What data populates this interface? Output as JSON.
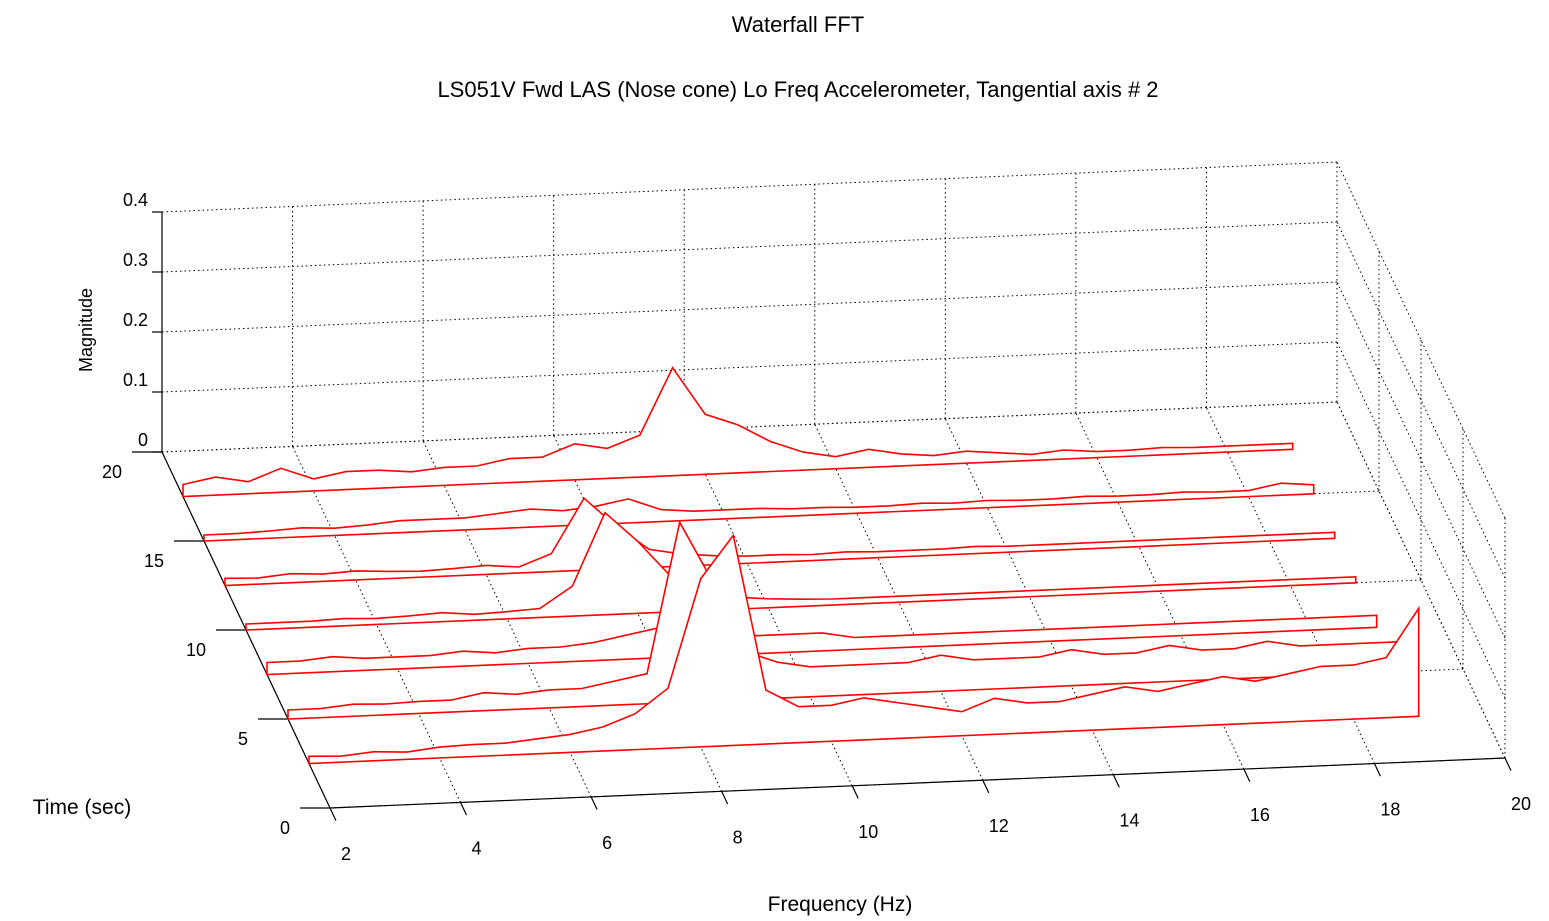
{
  "chart_data": {
    "type": "waterfall",
    "title": "Waterfall FFT",
    "subtitle": "LS051V Fwd LAS (Nose cone) Lo Freq Accelerometer, Tangential axis # 2",
    "xlabel": "Frequency (Hz)",
    "ylabel": "Time (sec)",
    "zlabel": "Magnitude",
    "xlim": [
      2,
      20
    ],
    "ylim": [
      0,
      20
    ],
    "zlim": [
      0,
      0.4
    ],
    "xticks": [
      "2",
      "4",
      "6",
      "8",
      "10",
      "12",
      "14",
      "16",
      "18",
      "20"
    ],
    "yticks": [
      "0",
      "5",
      "10",
      "15",
      "20"
    ],
    "zticks": [
      "0",
      "0.1",
      "0.2",
      "0.3",
      "0.4"
    ],
    "grid": true,
    "line_color": "#ff0000",
    "frequency": [
      2,
      2.5,
      3,
      3.5,
      4,
      4.5,
      5,
      5.5,
      6,
      6.5,
      7,
      7.5,
      8,
      8.5,
      9,
      9.5,
      10,
      10.5,
      11,
      11.5,
      12,
      12.5,
      13,
      13.5,
      14,
      14.5,
      15,
      15.5,
      16,
      16.5,
      17,
      17.5,
      18,
      18.5,
      19
    ],
    "series": [
      {
        "time": 2.5,
        "values": [
          0.012,
          0.01,
          0.015,
          0.012,
          0.018,
          0.02,
          0.02,
          0.025,
          0.03,
          0.04,
          0.06,
          0.1,
          0.28,
          0.35,
          0.09,
          0.06,
          0.06,
          0.07,
          0.06,
          0.05,
          0.04,
          0.06,
          0.05,
          0.05,
          0.06,
          0.07,
          0.06,
          0.07,
          0.08,
          0.07,
          0.08,
          0.09,
          0.09,
          0.1,
          0.18
        ]
      },
      {
        "time": 5.0,
        "values": [
          0.015,
          0.015,
          0.02,
          0.018,
          0.02,
          0.02,
          0.03,
          0.025,
          0.03,
          0.03,
          0.04,
          0.05,
          0.3,
          0.2,
          0.08,
          0.06,
          0.05,
          0.05,
          0.05,
          0.05,
          0.06,
          0.05,
          0.05,
          0.05,
          0.06,
          0.05,
          0.05,
          0.06,
          0.05,
          0.05,
          0.06,
          0.05,
          0.05,
          0.05,
          0.05
        ]
      },
      {
        "time": 7.5,
        "values": [
          0.02,
          0.02,
          0.025,
          0.02,
          0.02,
          0.02,
          0.025,
          0.02,
          0.025,
          0.025,
          0.03,
          0.04,
          0.05,
          0.05,
          0.04,
          0.03,
          0.03,
          0.03,
          0.02,
          0.02,
          0.02,
          0.02,
          0.02,
          0.02,
          0.02,
          0.02,
          0.02,
          0.02,
          0.02,
          0.02,
          0.02,
          0.02,
          0.02,
          0.02,
          0.02
        ]
      },
      {
        "time": 10.0,
        "values": [
          0.01,
          0.01,
          0.01,
          0.012,
          0.01,
          0.012,
          0.015,
          0.01,
          0.012,
          0.015,
          0.05,
          0.17,
          0.12,
          0.06,
          0.03,
          0.02,
          0.015,
          0.012,
          0.01,
          0.01,
          0.01,
          0.01,
          0.01,
          0.01,
          0.01,
          0.01,
          0.01,
          0.01,
          0.01,
          0.01,
          0.01,
          0.01,
          0.01,
          0.01,
          0.01
        ]
      },
      {
        "time": 12.5,
        "values": [
          0.012,
          0.01,
          0.015,
          0.012,
          0.015,
          0.012,
          0.01,
          0.012,
          0.015,
          0.01,
          0.03,
          0.12,
          0.07,
          0.03,
          0.02,
          0.015,
          0.012,
          0.012,
          0.01,
          0.012,
          0.01,
          0.01,
          0.01,
          0.012,
          0.01,
          0.01,
          0.01,
          0.01,
          0.01,
          0.01,
          0.01,
          0.01,
          0.01,
          0.01,
          0.01
        ]
      },
      {
        "time": 15.0,
        "values": [
          0.01,
          0.01,
          0.012,
          0.015,
          0.012,
          0.015,
          0.02,
          0.02,
          0.02,
          0.025,
          0.03,
          0.025,
          0.03,
          0.04,
          0.02,
          0.015,
          0.015,
          0.015,
          0.012,
          0.012,
          0.01,
          0.01,
          0.012,
          0.01,
          0.012,
          0.01,
          0.01,
          0.012,
          0.01,
          0.01,
          0.012,
          0.01,
          0.01,
          0.02,
          0.015
        ]
      },
      {
        "time": 17.5,
        "values": [
          0.02,
          0.03,
          0.02,
          0.04,
          0.02,
          0.03,
          0.03,
          0.025,
          0.03,
          0.03,
          0.04,
          0.04,
          0.06,
          0.05,
          0.07,
          0.18,
          0.1,
          0.08,
          0.05,
          0.03,
          0.02,
          0.03,
          0.02,
          0.015,
          0.02,
          0.015,
          0.01,
          0.015,
          0.01,
          0.01,
          0.012,
          0.01,
          0.01,
          0.01,
          0.01
        ]
      }
    ]
  }
}
